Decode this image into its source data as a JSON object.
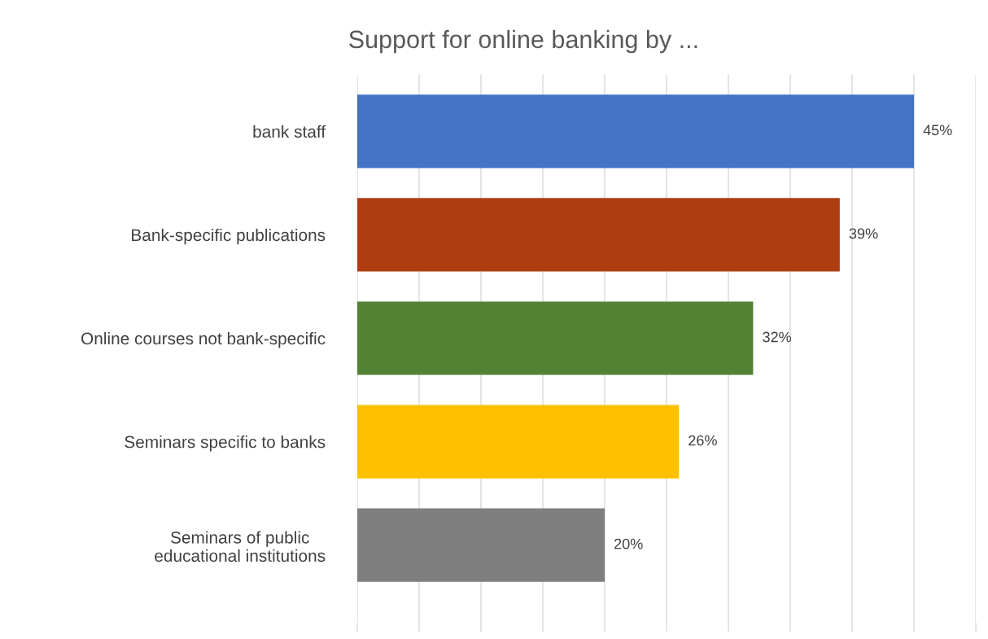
{
  "chart_data": {
    "type": "bar",
    "orientation": "horizontal",
    "title": "Support for online banking by ...",
    "categories": [
      "bank staff",
      "Bank-specific publications",
      "Online courses not bank-specific",
      "Seminars specific to banks",
      "Seminars of public\neducational institutions"
    ],
    "values": [
      45,
      39,
      32,
      26,
      20
    ],
    "colors": [
      "#4472c4",
      "#ae3e12",
      "#548235",
      "#ffc000",
      "#7f7f7f"
    ],
    "value_labels": [
      "45%",
      "39%",
      "32%",
      "26%",
      "20%"
    ],
    "xlim": [
      0,
      50
    ],
    "xticks": [
      {
        "value": 0,
        "label": null
      },
      {
        "value": 5,
        "label": null
      },
      {
        "value": 10,
        "label": null
      },
      {
        "value": 15,
        "label": null
      },
      {
        "value": 20,
        "label": null
      },
      {
        "value": 25,
        "label": null
      },
      {
        "value": 30,
        "label": null
      },
      {
        "value": 35,
        "label": null
      },
      {
        "value": 40,
        "label": null
      },
      {
        "value": 45,
        "label": null
      },
      {
        "value": 50,
        "label": null
      }
    ],
    "tick_labels": "y",
    "grid": "x",
    "legend": false
  }
}
